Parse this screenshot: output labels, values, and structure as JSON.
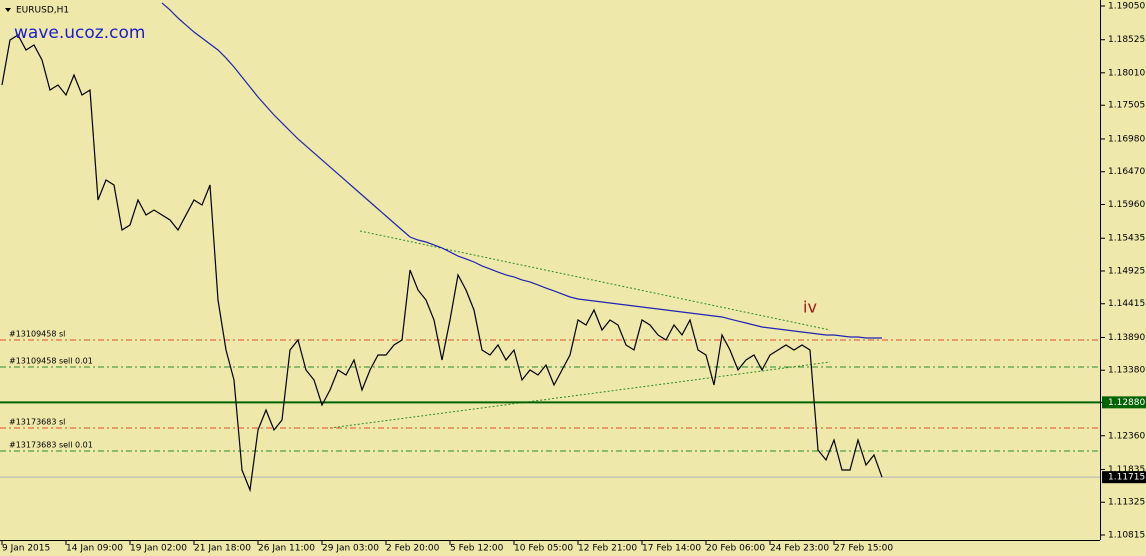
{
  "chart_data": {
    "type": "line",
    "symbol": "EURUSD,H1",
    "watermark": "wave.ucoz.com",
    "annotation": "iv",
    "categories": [
      "9 Jan 2015",
      null,
      null,
      null,
      null,
      null,
      null,
      null,
      "14 Jan 09:00",
      null,
      null,
      null,
      null,
      null,
      null,
      null,
      "19 Jan 02:00",
      null,
      null,
      null,
      null,
      null,
      null,
      null,
      "21 Jan 18:00",
      null,
      null,
      null,
      null,
      null,
      null,
      null,
      "26 Jan 11:00",
      null,
      null,
      null,
      null,
      null,
      null,
      null,
      "29 Jan 03:00",
      null,
      null,
      null,
      null,
      null,
      null,
      null,
      "2 Feb 20:00",
      null,
      null,
      null,
      null,
      null,
      null,
      null,
      "5 Feb 12:00",
      null,
      null,
      null,
      null,
      null,
      null,
      null,
      "10 Feb 05:00",
      null,
      null,
      null,
      null,
      null,
      null,
      null,
      "12 Feb 21:00",
      null,
      null,
      null,
      null,
      null,
      null,
      null,
      "17 Feb 14:00",
      null,
      null,
      null,
      null,
      null,
      null,
      null,
      "20 Feb 06:00",
      null,
      null,
      null,
      null,
      null,
      null,
      null,
      "24 Feb 23:00",
      null,
      null,
      null,
      null,
      null,
      null,
      null,
      "27 Feb 15:00",
      null,
      null,
      null,
      null,
      null,
      null
    ],
    "series": [
      {
        "color": "#000000",
        "values": [
          1.1782,
          1.18521,
          1.18599,
          1.18365,
          1.18443,
          1.18209,
          1.17742,
          1.1782,
          1.17665,
          1.17976,
          1.17665,
          1.17742,
          1.1603,
          1.16341,
          1.16264,
          1.15563,
          1.15641,
          1.1603,
          1.15797,
          1.15874,
          1.15797,
          1.15719,
          1.15563,
          1.15797,
          1.1603,
          1.15952,
          1.16264,
          1.14473,
          1.13695,
          1.13228,
          1.11827,
          1.11516,
          1.1245,
          1.12761,
          1.1245,
          1.12605,
          1.13695,
          1.13851,
          1.13384,
          1.13228,
          1.12839,
          1.13072,
          1.13384,
          1.13306,
          1.13539,
          1.13072,
          1.13384,
          1.13617,
          1.13617,
          1.13773,
          1.13851,
          1.1494,
          1.14629,
          1.14473,
          1.14162,
          1.13539,
          1.14162,
          1.14863,
          1.14629,
          1.14318,
          1.13695,
          1.13617,
          1.13773,
          1.13539,
          1.13695,
          1.13228,
          1.13384,
          1.13306,
          1.13461,
          1.1315,
          1.13384,
          1.13617,
          1.14162,
          1.14084,
          1.14318,
          1.14006,
          1.14162,
          1.14084,
          1.13773,
          1.13695,
          1.14162,
          1.14084,
          1.13929,
          1.13851,
          1.14084,
          1.13929,
          1.14162,
          1.13695,
          1.13617,
          1.1315,
          1.13929,
          1.13695,
          1.13384,
          1.13539,
          1.13617,
          1.13384,
          1.13617,
          1.13695,
          1.13773,
          1.13695,
          1.13773,
          1.13695,
          1.12138,
          1.11983,
          1.12294,
          1.11827,
          1.11827,
          1.12294,
          1.11905,
          1.12061,
          1.11715
        ]
      },
      {
        "color": "#2323b4",
        "values": [
          null,
          null,
          null,
          null,
          null,
          null,
          null,
          null,
          null,
          null,
          null,
          null,
          null,
          null,
          null,
          null,
          null,
          null,
          null,
          null,
          1.19097,
          1.18988,
          1.18863,
          1.18754,
          1.18645,
          1.18552,
          1.18458,
          1.18365,
          1.18241,
          1.181,
          1.17945,
          1.17789,
          1.17633,
          1.17493,
          1.17353,
          1.17229,
          1.17104,
          1.1698,
          1.16871,
          1.16762,
          1.16653,
          1.16544,
          1.16435,
          1.16326,
          1.16217,
          1.16108,
          1.15999,
          1.1589,
          1.15781,
          1.15672,
          1.15563,
          1.15454,
          1.15407,
          1.15376,
          1.1533,
          1.15283,
          1.15221,
          1.15158,
          1.15112,
          1.15065,
          1.15003,
          1.14956,
          1.14909,
          1.14863,
          1.14832,
          1.14785,
          1.14754,
          1.14707,
          1.1466,
          1.14614,
          1.14567,
          1.1452,
          1.14489,
          1.14473,
          1.14458,
          1.14442,
          1.14427,
          1.14411,
          1.14395,
          1.1438,
          1.14364,
          1.14349,
          1.14333,
          1.14318,
          1.14302,
          1.14286,
          1.14271,
          1.14255,
          1.1424,
          1.14224,
          1.14209,
          1.14177,
          1.14146,
          1.14115,
          1.14084,
          1.14053,
          1.14037,
          1.14022,
          1.14006,
          1.13991,
          1.13975,
          1.1396,
          1.13944,
          1.13928,
          1.13928,
          1.13913,
          1.13897,
          1.13897,
          1.13882,
          1.13882,
          1.13882
        ]
      }
    ],
    "ylim": [
      1.10815,
      1.1905
    ],
    "yticks": [
      {
        "value": 1.1905,
        "label": "1.19050"
      },
      1.18525,
      {
        "value": 1.1801,
        "label": "1.18010"
      },
      1.17505,
      {
        "value": 1.1698,
        "label": "1.16980"
      },
      {
        "value": 1.1647,
        "label": "1.16470"
      },
      {
        "value": 1.1596,
        "label": "1.15960"
      },
      1.15435,
      1.14925,
      1.14415,
      {
        "value": 1.1389,
        "label": "1.13890"
      },
      {
        "value": 1.1338,
        "label": "1.13380"
      },
      {
        "value": 1.1288,
        "label": "1.12880"
      },
      {
        "value": 1.1236,
        "label": "1.12360"
      },
      1.11835,
      1.11325,
      1.10815
    ],
    "orders": [
      {
        "name": "#13109458 sl",
        "value": 1.13851,
        "color": "#e0502a"
      },
      {
        "name": "#13109458 sell 0.01",
        "value": 1.1343,
        "color": "#2e8b2e"
      },
      {
        "name": "#13173683 sl",
        "value": 1.12481,
        "color": "#e0502a"
      },
      {
        "name": "#13173683 sell 0.01",
        "value": 1.12123,
        "color": "#2e8b2e"
      }
    ],
    "level": {
      "value": 1.1288,
      "label": "1.12880",
      "color": "#006400"
    },
    "bid": {
      "value": 1.11715,
      "label": "1.11715",
      "color": "#b4b4b4"
    }
  }
}
